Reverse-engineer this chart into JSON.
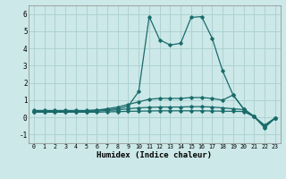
{
  "title": "",
  "xlabel": "Humidex (Indice chaleur)",
  "ylabel": "",
  "bg_color": "#cce8e8",
  "grid_color": "#aacece",
  "line_color": "#1a6b6b",
  "xlim": [
    -0.5,
    23.5
  ],
  "ylim": [
    -1.5,
    6.5
  ],
  "yticks": [
    -1,
    0,
    1,
    2,
    3,
    4,
    5,
    6
  ],
  "xticks": [
    0,
    1,
    2,
    3,
    4,
    5,
    6,
    7,
    8,
    9,
    10,
    11,
    12,
    13,
    14,
    15,
    16,
    17,
    18,
    19,
    20,
    21,
    22,
    23
  ],
  "lines": [
    {
      "x": [
        0,
        1,
        2,
        3,
        4,
        5,
        6,
        7,
        8,
        9,
        10,
        11,
        12,
        13,
        14,
        15,
        16,
        17,
        18,
        19,
        20,
        21,
        22,
        23
      ],
      "y": [
        0.4,
        0.4,
        0.4,
        0.4,
        0.4,
        0.4,
        0.42,
        0.45,
        0.5,
        0.65,
        1.5,
        5.85,
        4.5,
        4.2,
        4.3,
        5.8,
        5.85,
        4.6,
        2.7,
        1.3,
        0.5,
        0.05,
        -0.6,
        -0.05
      ]
    },
    {
      "x": [
        0,
        1,
        2,
        3,
        4,
        5,
        6,
        7,
        8,
        9,
        10,
        11,
        12,
        13,
        14,
        15,
        16,
        17,
        18,
        19,
        20,
        21,
        22,
        23
      ],
      "y": [
        0.35,
        0.35,
        0.35,
        0.35,
        0.35,
        0.38,
        0.42,
        0.5,
        0.6,
        0.75,
        0.9,
        1.05,
        1.1,
        1.1,
        1.1,
        1.15,
        1.15,
        1.1,
        1.0,
        1.3,
        0.5,
        0.05,
        -0.55,
        -0.05
      ]
    },
    {
      "x": [
        0,
        1,
        2,
        3,
        4,
        5,
        6,
        7,
        8,
        9,
        10,
        11,
        12,
        13,
        14,
        15,
        16,
        17,
        18,
        19,
        20,
        21,
        22,
        23
      ],
      "y": [
        0.32,
        0.32,
        0.32,
        0.32,
        0.32,
        0.34,
        0.36,
        0.4,
        0.43,
        0.5,
        0.55,
        0.58,
        0.6,
        0.6,
        0.6,
        0.62,
        0.62,
        0.6,
        0.55,
        0.5,
        0.45,
        0.05,
        -0.5,
        -0.05
      ]
    },
    {
      "x": [
        0,
        1,
        2,
        3,
        4,
        5,
        6,
        7,
        8,
        9,
        10,
        11,
        12,
        13,
        14,
        15,
        16,
        17,
        18,
        19,
        20,
        21,
        22,
        23
      ],
      "y": [
        0.3,
        0.3,
        0.3,
        0.3,
        0.3,
        0.3,
        0.3,
        0.32,
        0.33,
        0.35,
        0.36,
        0.37,
        0.38,
        0.38,
        0.38,
        0.38,
        0.38,
        0.37,
        0.36,
        0.35,
        0.34,
        0.04,
        -0.45,
        -0.04
      ]
    }
  ]
}
